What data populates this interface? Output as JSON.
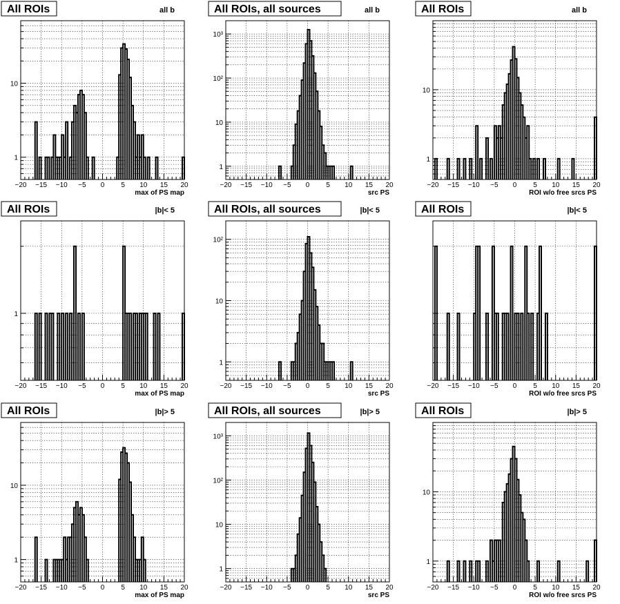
{
  "chart_data": [
    {
      "type": "bar",
      "title": "All ROIs",
      "selection": "all b",
      "xlabel": "max of PS map",
      "xlim": [
        -20,
        20
      ],
      "xticks": [
        "−20",
        "−15",
        "−10",
        "−5",
        "0",
        "5",
        "10",
        "15",
        "20"
      ],
      "yscale": "log",
      "ylim": [
        0.5,
        70
      ],
      "yticklabels": [
        {
          "value": 1,
          "label": "1"
        },
        {
          "value": 10,
          "label": "10"
        }
      ],
      "grid": true,
      "bin_width": 0.5,
      "bins": [
        [
          -16.5,
          3
        ],
        [
          -15.5,
          1
        ],
        [
          -14.0,
          1
        ],
        [
          -13.5,
          1
        ],
        [
          -12.5,
          1
        ],
        [
          -12.0,
          2
        ],
        [
          -11.5,
          1
        ],
        [
          -11.0,
          1
        ],
        [
          -10.5,
          1
        ],
        [
          -10.0,
          2
        ],
        [
          -9.5,
          1
        ],
        [
          -9.0,
          3
        ],
        [
          -8.0,
          1
        ],
        [
          -7.5,
          3
        ],
        [
          -7.0,
          5
        ],
        [
          -6.5,
          4
        ],
        [
          -6.0,
          7
        ],
        [
          -5.5,
          8
        ],
        [
          -5.0,
          7
        ],
        [
          -4.5,
          4
        ],
        [
          -4.0,
          1
        ],
        [
          -2.5,
          1
        ],
        [
          3.5,
          1
        ],
        [
          4.0,
          13
        ],
        [
          4.5,
          30
        ],
        [
          5.0,
          34
        ],
        [
          5.5,
          29
        ],
        [
          6.0,
          21
        ],
        [
          6.5,
          12
        ],
        [
          7.0,
          5
        ],
        [
          7.5,
          3
        ],
        [
          8.0,
          1
        ],
        [
          8.5,
          2
        ],
        [
          9.0,
          1
        ],
        [
          9.5,
          2
        ],
        [
          10.0,
          1
        ],
        [
          11.0,
          1
        ],
        [
          13.0,
          1
        ],
        [
          19.5,
          1
        ]
      ]
    },
    {
      "type": "bar",
      "title": "All ROIs, all sources",
      "selection": "all b",
      "xlabel": "src PS",
      "xlim": [
        -20,
        20
      ],
      "xticks": [
        "−20",
        "−15",
        "−10",
        "−5",
        "0",
        "5",
        "10",
        "15",
        "20"
      ],
      "yscale": "log",
      "ylim": [
        0.5,
        2000
      ],
      "yticklabels": [
        {
          "value": 1,
          "label": "1"
        },
        {
          "value": 10,
          "label": "10"
        },
        {
          "value": 100,
          "label": "10²"
        },
        {
          "value": 1000,
          "label": "10³"
        }
      ],
      "grid": true,
      "bin_width": 0.5,
      "bins": [
        [
          -7.0,
          1
        ],
        [
          -4.0,
          1
        ],
        [
          -3.5,
          3
        ],
        [
          -3.0,
          9
        ],
        [
          -2.5,
          18
        ],
        [
          -2.0,
          40
        ],
        [
          -1.5,
          90
        ],
        [
          -1.0,
          220
        ],
        [
          -0.5,
          600
        ],
        [
          0.0,
          1250
        ],
        [
          0.5,
          700
        ],
        [
          1.0,
          320
        ],
        [
          1.5,
          130
        ],
        [
          2.0,
          50
        ],
        [
          2.5,
          18
        ],
        [
          3.0,
          8
        ],
        [
          3.5,
          3
        ],
        [
          4.0,
          2
        ],
        [
          4.5,
          1
        ],
        [
          5.0,
          1
        ],
        [
          5.5,
          1
        ],
        [
          6.0,
          1
        ],
        [
          10.5,
          1
        ]
      ]
    },
    {
      "type": "bar",
      "title": "All ROIs",
      "selection": "all b",
      "xlabel": "ROI w/o free srcs PS",
      "xlim": [
        -20,
        20
      ],
      "xticks": [
        "−20",
        "−15",
        "−10",
        "−5",
        "0",
        "5",
        "10",
        "15",
        "20"
      ],
      "yscale": "log",
      "ylim": [
        0.5,
        100
      ],
      "yticklabels": [
        {
          "value": 1,
          "label": "1"
        },
        {
          "value": 10,
          "label": "10"
        }
      ],
      "grid": true,
      "bin_width": 0.5,
      "bins": [
        [
          -19.5,
          1
        ],
        [
          -16.5,
          1
        ],
        [
          -14.0,
          1
        ],
        [
          -12.5,
          1
        ],
        [
          -11.0,
          1
        ],
        [
          -9.5,
          3
        ],
        [
          -8.5,
          1
        ],
        [
          -7.0,
          2
        ],
        [
          -6.0,
          1
        ],
        [
          -5.0,
          3
        ],
        [
          -4.5,
          2
        ],
        [
          -4.0,
          3
        ],
        [
          -3.5,
          2
        ],
        [
          -3.0,
          6
        ],
        [
          -2.5,
          9
        ],
        [
          -2.0,
          12
        ],
        [
          -1.5,
          17
        ],
        [
          -1.0,
          27
        ],
        [
          -0.5,
          42
        ],
        [
          0.0,
          28
        ],
        [
          0.5,
          15
        ],
        [
          1.0,
          9
        ],
        [
          1.5,
          6
        ],
        [
          2.0,
          4
        ],
        [
          2.5,
          2
        ],
        [
          3.0,
          3
        ],
        [
          3.5,
          1
        ],
        [
          4.5,
          1
        ],
        [
          5.5,
          1
        ],
        [
          7.0,
          1
        ],
        [
          10.5,
          1
        ],
        [
          14.0,
          1
        ],
        [
          19.5,
          4
        ]
      ]
    },
    {
      "type": "bar",
      "title": "All ROIs",
      "selection": "|b|< 5",
      "xlabel": "max of PS map",
      "xlim": [
        -20,
        20
      ],
      "xticks": [
        "−20",
        "−15",
        "−10",
        "−5",
        "0",
        "5",
        "10",
        "15",
        "20"
      ],
      "yscale": "log",
      "ylim": [
        0.5,
        2.6
      ],
      "yticklabels": [
        {
          "value": 1,
          "label": "1"
        }
      ],
      "grid": true,
      "bin_width": 0.5,
      "bins": [
        [
          -16.5,
          1
        ],
        [
          -15.5,
          1
        ],
        [
          -14.0,
          1
        ],
        [
          -13.0,
          1
        ],
        [
          -12.5,
          1
        ],
        [
          -11.0,
          1
        ],
        [
          -10.0,
          1
        ],
        [
          -9.0,
          1
        ],
        [
          -8.0,
          1
        ],
        [
          -7.0,
          2
        ],
        [
          -6.0,
          1
        ],
        [
          -5.0,
          1
        ],
        [
          5.0,
          2
        ],
        [
          5.5,
          1
        ],
        [
          6.0,
          1
        ],
        [
          6.5,
          1
        ],
        [
          7.5,
          1
        ],
        [
          8.0,
          1
        ],
        [
          9.0,
          1
        ],
        [
          9.5,
          1
        ],
        [
          10.0,
          1
        ],
        [
          10.5,
          1
        ],
        [
          12.5,
          1
        ],
        [
          13.5,
          1
        ],
        [
          19.5,
          1
        ]
      ]
    },
    {
      "type": "bar",
      "title": "All ROIs, all sources",
      "selection": "|b|< 5",
      "xlabel": "src PS",
      "xlim": [
        -20,
        20
      ],
      "xticks": [
        "−20",
        "−15",
        "−10",
        "−5",
        "0",
        "5",
        "10",
        "15",
        "20"
      ],
      "yscale": "log",
      "ylim": [
        0.5,
        200
      ],
      "yticklabels": [
        {
          "value": 1,
          "label": "1"
        },
        {
          "value": 10,
          "label": "10"
        },
        {
          "value": 100,
          "label": "10²"
        }
      ],
      "grid": true,
      "bin_width": 0.5,
      "bins": [
        [
          -7.0,
          1
        ],
        [
          -4.0,
          1
        ],
        [
          -3.5,
          1
        ],
        [
          -3.0,
          2
        ],
        [
          -2.5,
          3
        ],
        [
          -2.0,
          6
        ],
        [
          -1.5,
          10
        ],
        [
          -1.0,
          30
        ],
        [
          -0.5,
          85
        ],
        [
          0.0,
          110
        ],
        [
          0.5,
          60
        ],
        [
          1.0,
          35
        ],
        [
          1.5,
          15
        ],
        [
          2.0,
          8
        ],
        [
          2.5,
          4
        ],
        [
          3.0,
          2
        ],
        [
          3.5,
          2
        ],
        [
          4.0,
          1
        ],
        [
          4.5,
          1
        ],
        [
          5.0,
          1
        ],
        [
          5.5,
          1
        ],
        [
          6.0,
          1
        ],
        [
          10.5,
          1
        ]
      ]
    },
    {
      "type": "bar",
      "title": "All ROIs",
      "selection": "|b|< 5",
      "xlabel": "ROI w/o free srcs PS",
      "xlim": [
        -20,
        20
      ],
      "xticks": [
        "−20",
        "−15",
        "−10",
        "−5",
        "0",
        "5",
        "10",
        "15",
        "20"
      ],
      "yscale": "log",
      "ylim": [
        0.5,
        2.6
      ],
      "yticklabels": [],
      "grid": true,
      "bin_width": 0.5,
      "bins": [
        [
          -19.5,
          2
        ],
        [
          -16.5,
          1
        ],
        [
          -14.0,
          1
        ],
        [
          -10.0,
          1
        ],
        [
          -9.5,
          2
        ],
        [
          -9.0,
          2
        ],
        [
          -7.0,
          1
        ],
        [
          -5.5,
          2
        ],
        [
          -5.0,
          1
        ],
        [
          -4.5,
          1
        ],
        [
          -3.0,
          1
        ],
        [
          -2.5,
          1
        ],
        [
          -2.0,
          1
        ],
        [
          -1.0,
          2
        ],
        [
          0.0,
          1
        ],
        [
          0.5,
          1
        ],
        [
          1.5,
          1
        ],
        [
          2.5,
          2
        ],
        [
          3.0,
          1
        ],
        [
          4.0,
          1
        ],
        [
          5.5,
          1
        ],
        [
          6.0,
          2
        ],
        [
          7.5,
          1
        ],
        [
          19.5,
          2
        ]
      ]
    },
    {
      "type": "bar",
      "title": "All ROIs",
      "selection": "|b|> 5",
      "xlabel": "max of PS map",
      "xlim": [
        -20,
        20
      ],
      "xticks": [
        "−20",
        "−15",
        "−10",
        "−5",
        "0",
        "5",
        "10",
        "15",
        "20"
      ],
      "yscale": "log",
      "ylim": [
        0.5,
        70
      ],
      "yticklabels": [
        {
          "value": 1,
          "label": "1"
        },
        {
          "value": 10,
          "label": "10"
        }
      ],
      "grid": true,
      "bin_width": 0.5,
      "bins": [
        [
          -16.5,
          2
        ],
        [
          -14.0,
          1
        ],
        [
          -12.0,
          1
        ],
        [
          -11.5,
          1
        ],
        [
          -11.0,
          1
        ],
        [
          -10.5,
          1
        ],
        [
          -10.0,
          1
        ],
        [
          -9.5,
          2
        ],
        [
          -9.0,
          1
        ],
        [
          -8.5,
          2
        ],
        [
          -8.0,
          2
        ],
        [
          -7.5,
          3
        ],
        [
          -7.0,
          5
        ],
        [
          -6.5,
          6
        ],
        [
          -6.0,
          4
        ],
        [
          -5.5,
          5
        ],
        [
          -5.0,
          4
        ],
        [
          -4.5,
          2
        ],
        [
          -4.0,
          1
        ],
        [
          4.0,
          12
        ],
        [
          4.5,
          28
        ],
        [
          5.0,
          32
        ],
        [
          5.5,
          27
        ],
        [
          6.0,
          20
        ],
        [
          6.5,
          11
        ],
        [
          7.0,
          4
        ],
        [
          7.5,
          2
        ],
        [
          8.0,
          1
        ],
        [
          8.5,
          1
        ],
        [
          9.0,
          1
        ],
        [
          9.5,
          2
        ],
        [
          10.0,
          1
        ]
      ]
    },
    {
      "type": "bar",
      "title": "All ROIs, all sources",
      "selection": "|b|> 5",
      "xlabel": "src PS",
      "xlim": [
        -20,
        20
      ],
      "xticks": [
        "−20",
        "−15",
        "−10",
        "−5",
        "0",
        "5",
        "10",
        "15",
        "20"
      ],
      "yscale": "log",
      "ylim": [
        0.5,
        2000
      ],
      "yticklabels": [
        {
          "value": 1,
          "label": "1"
        },
        {
          "value": 10,
          "label": "10"
        },
        {
          "value": 100,
          "label": "10²"
        },
        {
          "value": 1000,
          "label": "10³"
        }
      ],
      "grid": true,
      "bin_width": 0.5,
      "bins": [
        [
          -4.0,
          1
        ],
        [
          -3.5,
          1
        ],
        [
          -3.0,
          2
        ],
        [
          -2.5,
          6
        ],
        [
          -2.0,
          14
        ],
        [
          -1.5,
          45
        ],
        [
          -1.0,
          150
        ],
        [
          -0.5,
          520
        ],
        [
          0.0,
          1150
        ],
        [
          0.5,
          600
        ],
        [
          1.0,
          250
        ],
        [
          1.5,
          90
        ],
        [
          2.0,
          25
        ],
        [
          2.5,
          10
        ],
        [
          3.0,
          4
        ],
        [
          3.5,
          2
        ],
        [
          4.0,
          1
        ]
      ]
    },
    {
      "type": "bar",
      "title": "All ROIs",
      "selection": "|b|> 5",
      "xlabel": "ROI w/o free srcs PS",
      "xlim": [
        -20,
        20
      ],
      "xticks": [
        "−20",
        "−15",
        "−10",
        "−5",
        "0",
        "5",
        "10",
        "15",
        "20"
      ],
      "yscale": "log",
      "ylim": [
        0.5,
        100
      ],
      "yticklabels": [
        {
          "value": 1,
          "label": "1"
        },
        {
          "value": 10,
          "label": "10"
        }
      ],
      "grid": true,
      "bin_width": 0.5,
      "bins": [
        [
          -16.5,
          1
        ],
        [
          -14.0,
          1
        ],
        [
          -12.5,
          1
        ],
        [
          -11.0,
          1
        ],
        [
          -9.5,
          1
        ],
        [
          -9.0,
          1
        ],
        [
          -7.0,
          1
        ],
        [
          -6.0,
          2
        ],
        [
          -5.5,
          1
        ],
        [
          -5.0,
          2
        ],
        [
          -4.5,
          2
        ],
        [
          -4.0,
          2
        ],
        [
          -3.0,
          7
        ],
        [
          -2.5,
          10
        ],
        [
          -2.0,
          13
        ],
        [
          -1.5,
          18
        ],
        [
          -1.0,
          30
        ],
        [
          -0.5,
          45
        ],
        [
          0.0,
          30
        ],
        [
          0.5,
          15
        ],
        [
          1.0,
          9
        ],
        [
          1.5,
          5
        ],
        [
          2.0,
          4
        ],
        [
          2.5,
          2
        ],
        [
          3.0,
          1
        ],
        [
          5.5,
          1
        ],
        [
          10.5,
          1
        ],
        [
          17.5,
          1
        ],
        [
          19.5,
          2
        ]
      ]
    }
  ]
}
